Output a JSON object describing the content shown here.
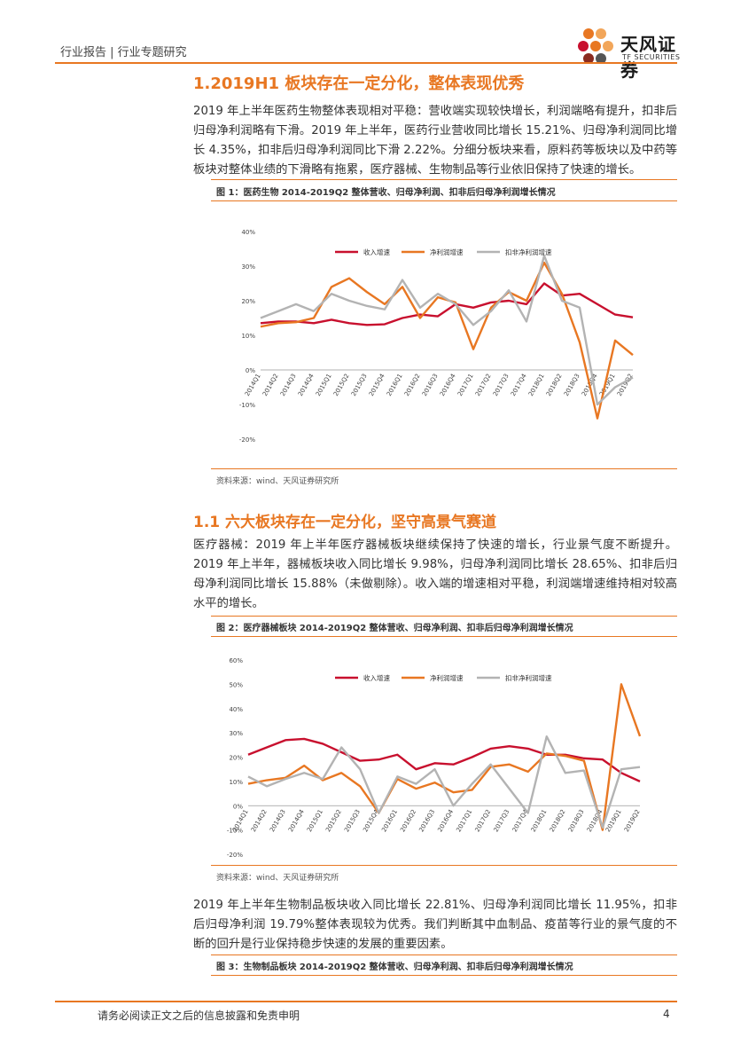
{
  "header": {
    "left": "行业报告 | 行业专题研究",
    "logo_main": "天风证券",
    "logo_sub": "TF SECURITIES"
  },
  "section1": {
    "title": "1.2019H1 板块存在一定分化，整体表现优秀",
    "para": "2019 年上半年医药生物整体表现相对平稳：营收端实现较快增长，利润端略有提升，扣非后归母净利润略有下滑。2019 年上半年，医药行业营收同比增长 15.21%、归母净利润同比增长 4.35%，扣非后归母净利润同比下滑 2.22%。分细分板块来看，原料药等板块以及中药等板块对整体业绩的下滑略有拖累，医疗器械、生物制品等行业依旧保持了快速的增长。",
    "fig_caption": "图 1：医药生物 2014-2019Q2 整体营收、归母净利润、扣非后归母净利润增长情况",
    "source": "资料来源：wind、天风证券研究所"
  },
  "section2": {
    "title": "1.1 六大板块存在一定分化，坚守高景气赛道",
    "para": "医疗器械：2019 年上半年医疗器械板块继续保持了快速的增长，行业景气度不断提升。2019 年上半年，器械板块收入同比增长 9.98%，归母净利润同比增长 28.65%、扣非后归母净利润同比增长 15.88%（未做剔除）。收入端的增速相对平稳，利润端增速维持相对较高水平的增长。",
    "fig_caption": "图 2：医疗器械板块 2014-2019Q2 整体营收、归母净利润、扣非后归母净利润增长情况",
    "source": "资料来源：wind、天风证券研究所",
    "para2": "2019 年上半年生物制品板块收入同比增长 22.81%、归母净利润同比增长 11.95%，扣非后归母净利润 19.79%整体表现较为优秀。我们判断其中血制品、疫苗等行业的景气度的不断的回升是行业保持稳步快速的发展的重要因素。",
    "fig3_caption": "图 3：生物制品板块 2014-2019Q2 整体营收、归母净利润、扣非后归母净利润增长情况"
  },
  "footer": {
    "text": "请务必阅读正文之后的信息披露和免责申明",
    "page": "4"
  },
  "chart_data": [
    {
      "type": "line",
      "categories": [
        "2014Q1",
        "2014Q2",
        "2014Q3",
        "2014Q4",
        "2015Q1",
        "2015Q2",
        "2015Q3",
        "2015Q4",
        "2016Q1",
        "2016Q2",
        "2016Q3",
        "2016Q4",
        "2017Q1",
        "2017Q2",
        "2017Q3",
        "2017Q4",
        "2018Q1",
        "2018Q2",
        "2018Q3",
        "2018Q4",
        "2019Q1",
        "2019Q2"
      ],
      "series": [
        {
          "name": "收入增速",
          "color": "#c8102e",
          "values": [
            13.5,
            14,
            14,
            13.5,
            14.5,
            13.5,
            13,
            13.2,
            15,
            16,
            15.5,
            19,
            18,
            19.5,
            20,
            19,
            25,
            21.5,
            22,
            19,
            16,
            15.2
          ]
        },
        {
          "name": "净利润增速",
          "color": "#e87722",
          "values": [
            12.5,
            13.5,
            13.8,
            15,
            24,
            26.5,
            22.5,
            19,
            24,
            15,
            21,
            19.5,
            6,
            18,
            22.5,
            20,
            31,
            22,
            8,
            -14,
            8.5,
            4.3
          ]
        },
        {
          "name": "扣非净利润增速",
          "color": "#b3b3b3",
          "values": [
            15,
            17,
            19,
            17,
            22,
            20,
            18.5,
            17.5,
            26,
            18,
            22,
            19,
            13,
            17,
            23,
            14,
            33,
            20,
            18,
            -10,
            -5,
            -2.2
          ]
        }
      ],
      "yticks": [
        "40%",
        "30%",
        "20%",
        "10%",
        "0%",
        "-10%",
        "-20%"
      ],
      "ylim": [
        -20,
        40
      ]
    },
    {
      "type": "line",
      "categories": [
        "2014Q1",
        "2014Q2",
        "2014Q3",
        "2014Q4",
        "2015Q1",
        "2015Q2",
        "2015Q3",
        "2015Q4",
        "2016Q1",
        "2016Q2",
        "2016Q3",
        "2016Q4",
        "2017Q1",
        "2017Q2",
        "2017Q3",
        "2017Q4",
        "2018Q1",
        "2018Q2",
        "2018Q3",
        "2018Q4",
        "2019Q1",
        "2019Q2"
      ],
      "series": [
        {
          "name": "收入增速",
          "color": "#c8102e",
          "values": [
            21,
            24,
            27,
            27.5,
            25.5,
            22,
            18.5,
            19,
            21,
            15,
            17.5,
            17,
            20,
            23.5,
            24.5,
            23.5,
            21,
            21,
            19.5,
            19,
            13.5,
            10
          ]
        },
        {
          "name": "净利润增速",
          "color": "#e87722",
          "values": [
            9,
            10.5,
            11.5,
            16.5,
            10.5,
            13.5,
            8,
            -3,
            11,
            7,
            9.5,
            5.5,
            6.5,
            16,
            17,
            14,
            21.5,
            20.5,
            18.5,
            -10,
            50,
            28.6
          ]
        },
        {
          "name": "扣非净利润增速",
          "color": "#b3b3b3",
          "values": [
            12,
            8,
            11,
            13.5,
            11,
            24,
            15,
            -3,
            12,
            9,
            15,
            0,
            9,
            17,
            7,
            -3,
            28.5,
            13.5,
            14.5,
            -9,
            15,
            15.9
          ]
        }
      ],
      "yticks": [
        "60%",
        "50%",
        "40%",
        "30%",
        "20%",
        "10%",
        "0%",
        "-10%",
        "-20%"
      ],
      "ylim": [
        -20,
        60
      ]
    }
  ]
}
